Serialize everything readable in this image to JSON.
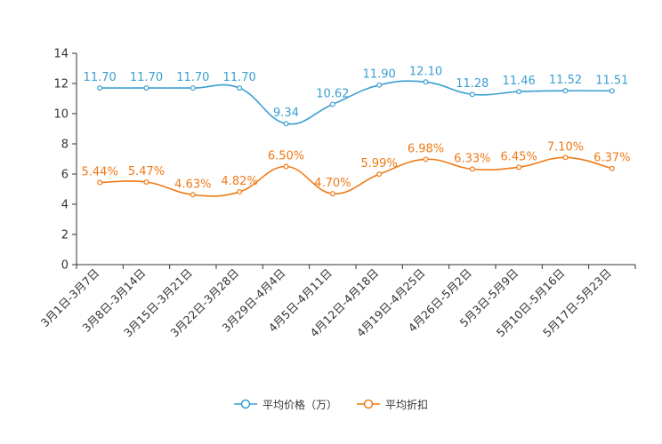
{
  "chart_data": {
    "type": "line",
    "title": "",
    "xlabel": "",
    "ylabel": "",
    "ylim": [
      0,
      14
    ],
    "yticks": [
      0,
      2,
      4,
      6,
      8,
      10,
      12,
      14
    ],
    "grid": false,
    "legend_position": "bottom-center",
    "categories": [
      "3月1日-3月7日",
      "3月8日-3月14日",
      "3月15日-3月21日",
      "3月22日-3月28日",
      "3月29日-4月4日",
      "4月5日-4月11日",
      "4月12日-4月18日",
      "4月19日-4月25日",
      "4月26日-5月2日",
      "5月3日-5月9日",
      "5月10日-5月16日",
      "5月17日-5月23日"
    ],
    "series": [
      {
        "name": "平均价格（万）",
        "color": "#3a9fd0",
        "values": [
          11.7,
          11.7,
          11.7,
          11.7,
          9.34,
          10.62,
          11.9,
          12.1,
          11.28,
          11.46,
          11.52,
          11.51
        ],
        "labels": [
          "11.70",
          "11.70",
          "11.70",
          "11.70",
          "9.34",
          "10.62",
          "11.90",
          "12.10",
          "11.28",
          "11.46",
          "11.52",
          "11.51"
        ]
      },
      {
        "name": "平均折扣",
        "color": "#ef7a16",
        "values": [
          5.44,
          5.47,
          4.63,
          4.82,
          6.5,
          4.7,
          5.99,
          6.98,
          6.33,
          6.45,
          7.1,
          6.37
        ],
        "labels": [
          "5.44%",
          "5.47%",
          "4.63%",
          "4.82%",
          "6.50%",
          "4.70%",
          "5.99%",
          "6.98%",
          "6.33%",
          "6.45%",
          "7.10%",
          "6.37%"
        ]
      }
    ]
  }
}
